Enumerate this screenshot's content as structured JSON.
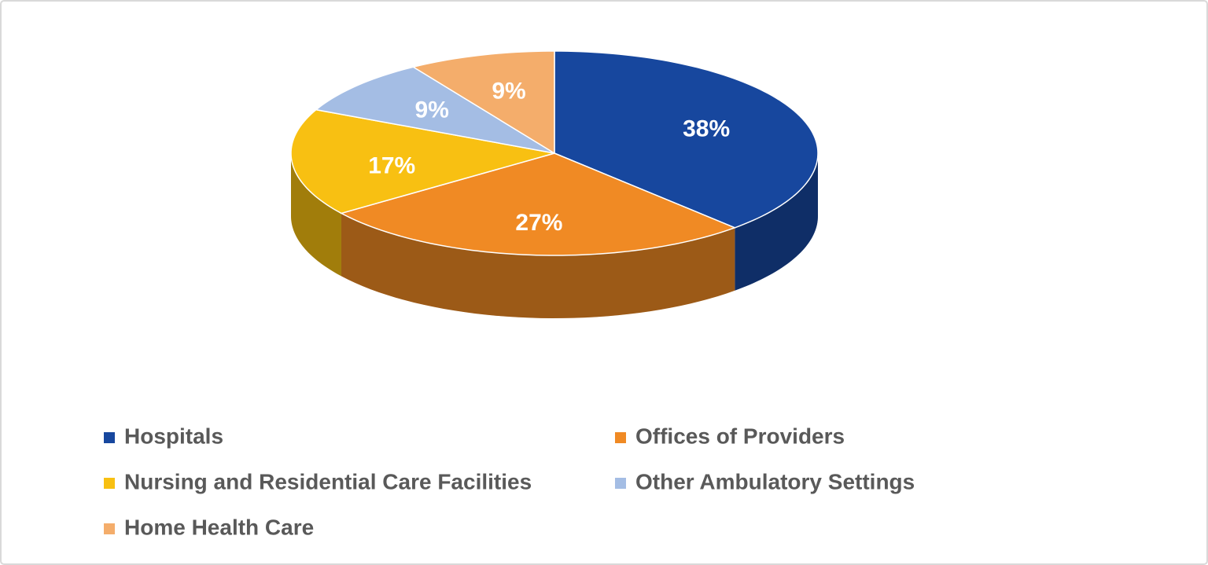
{
  "chart_data": {
    "type": "pie3d",
    "categories": [
      "Hospitals",
      "Offices of Providers",
      "Nursing and Residential Care Facilities",
      "Other Ambulatory Settings",
      "Home Health Care"
    ],
    "values": [
      38,
      27,
      17,
      9,
      9
    ],
    "value_labels": [
      "38%",
      "27%",
      "17%",
      "9%",
      "9%"
    ],
    "colors": [
      "#17479e",
      "#f08a24",
      "#f8c012",
      "#a4bde4",
      "#f4ad6b"
    ],
    "legend": "bottom"
  }
}
